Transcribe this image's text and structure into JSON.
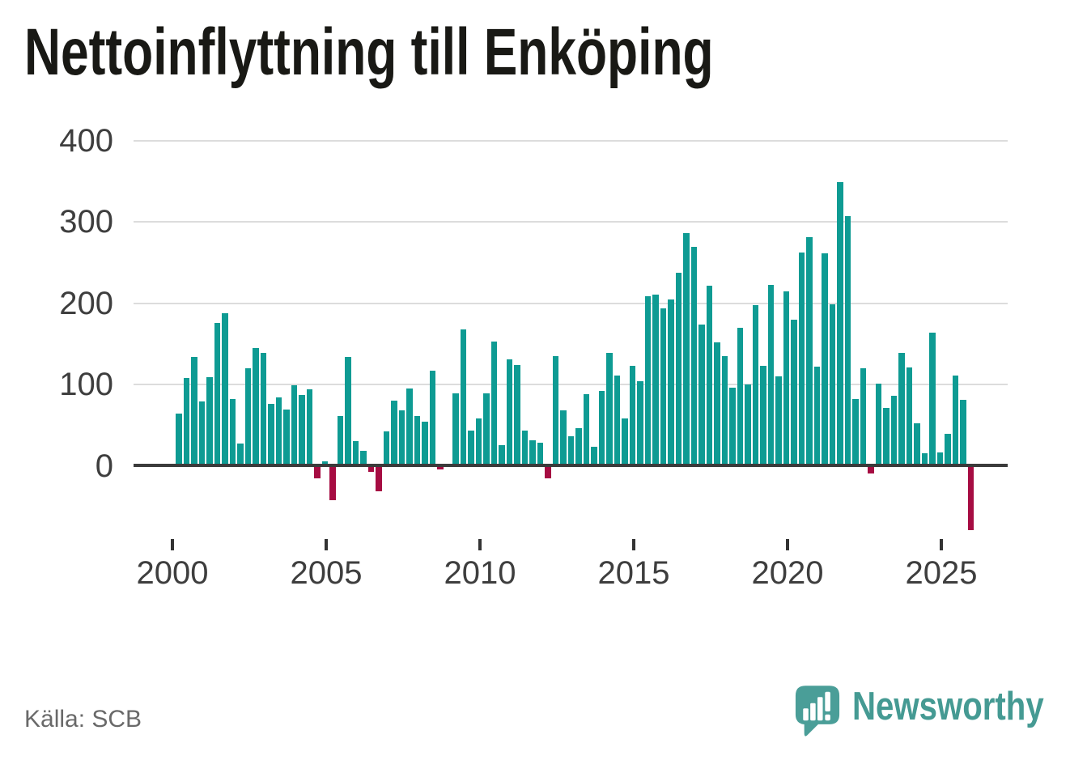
{
  "header": {
    "title": "Nettoinflyttning till Enköping"
  },
  "footer": {
    "source": "Källa: SCB",
    "brand": "Newsworthy"
  },
  "chart_data": {
    "type": "bar",
    "title": "Nettoinflyttning till Enköping",
    "frequency": "quarterly",
    "x_start": {
      "year": 2000,
      "quarter": 1
    },
    "values": [
      65,
      108,
      134,
      80,
      109,
      176,
      188,
      83,
      28,
      120,
      145,
      139,
      77,
      84,
      70,
      99,
      87,
      94,
      -14,
      6,
      -41,
      62,
      134,
      31,
      19,
      -6,
      -30,
      43,
      81,
      69,
      95,
      62,
      55,
      117,
      -3,
      0,
      89,
      168,
      44,
      59,
      89,
      153,
      26,
      131,
      124,
      44,
      32,
      29,
      -14,
      135,
      69,
      37,
      47,
      88,
      24,
      92,
      139,
      111,
      59,
      123,
      104,
      209,
      211,
      194,
      205,
      238,
      286,
      269,
      174,
      222,
      152,
      135,
      96,
      170,
      100,
      198,
      123,
      223,
      110,
      215,
      180,
      262,
      281,
      122,
      261,
      199,
      349,
      307,
      83,
      120,
      -8,
      101,
      72,
      86,
      139,
      121,
      53,
      16,
      164,
      17,
      40,
      111,
      82,
      -78
    ],
    "y_ticks": [
      0,
      100,
      200,
      300,
      400
    ],
    "y_tick_labels": [
      "0",
      "100",
      "200",
      "300",
      "400"
    ],
    "x_tick_years": [
      2000,
      2005,
      2010,
      2015,
      2020,
      2025
    ],
    "x_tick_labels": [
      "2000",
      "2005",
      "2010",
      "2015",
      "2020",
      "2025"
    ],
    "ylim": [
      -100,
      400
    ],
    "grid": "horizontal",
    "legend": "none",
    "positive_color": "#0e9b93",
    "negative_color": "#a60c42"
  }
}
